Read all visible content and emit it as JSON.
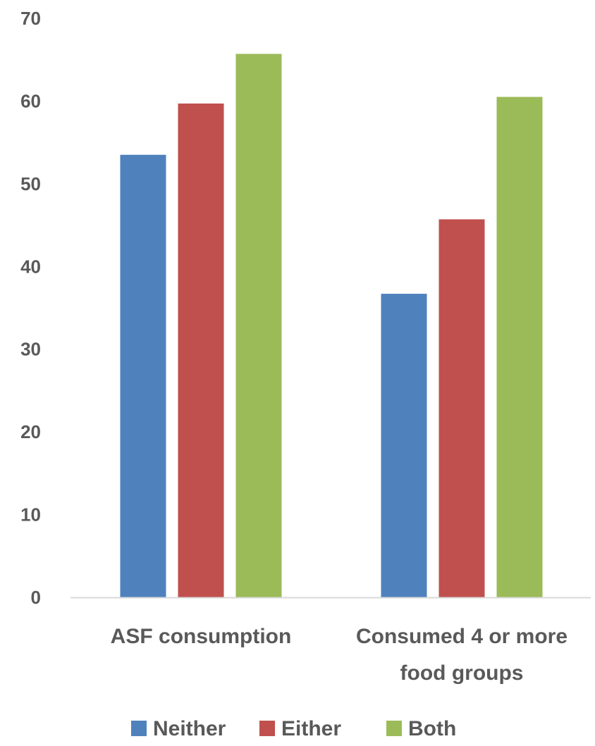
{
  "chart_data": {
    "type": "bar",
    "categories": [
      [
        "ASF consumption"
      ],
      [
        "Consumed 4 or more",
        "food groups"
      ]
    ],
    "series": [
      {
        "name": "Neither",
        "color": "#4F81BD",
        "values": [
          53.5,
          36.7
        ]
      },
      {
        "name": "Either",
        "color": "#C0504D",
        "values": [
          59.7,
          45.7
        ]
      },
      {
        "name": "Both",
        "color": "#9BBB59",
        "values": [
          65.7,
          60.5
        ]
      }
    ],
    "yticks": [
      "0",
      "10",
      "20",
      "30",
      "40",
      "50",
      "60",
      "70"
    ],
    "ylim": [
      0,
      70
    ],
    "grid": false,
    "legend_position": "bottom"
  }
}
